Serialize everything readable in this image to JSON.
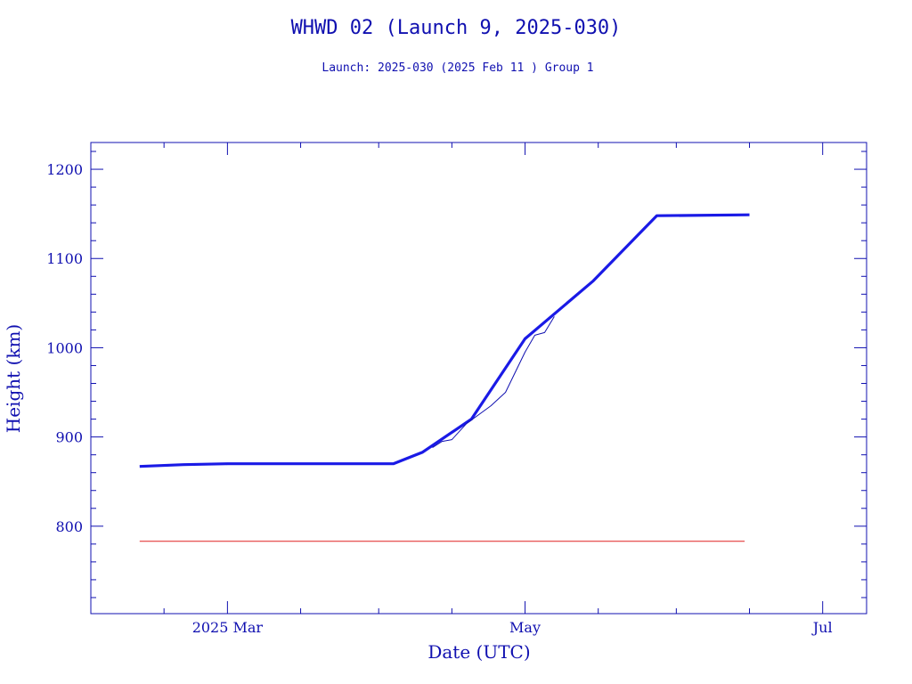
{
  "chart_data": {
    "type": "line",
    "title": "WHWD 02 (Launch 9, 2025-030)",
    "subtitle": "Launch: 2025-030  (2025 Feb 11 )  Group 1",
    "xlabel": "Date (UTC)",
    "ylabel": "Height (km)",
    "xlim": [
      "2025-02-01",
      "2025-07-10"
    ],
    "ylim": [
      702,
      1230
    ],
    "x_ticks": [
      {
        "date": "2025-03-01",
        "label": "2025 Mar"
      },
      {
        "date": "2025-05-01",
        "label": "May"
      },
      {
        "date": "2025-07-01",
        "label": "Jul"
      }
    ],
    "y_ticks": [
      800,
      900,
      1000,
      1100,
      1200
    ],
    "grid": false,
    "series": [
      {
        "color": "#1a1ae6",
        "values": [
          {
            "date": "2025-02-11",
            "height": 867
          },
          {
            "date": "2025-02-20",
            "height": 869
          },
          {
            "date": "2025-03-01",
            "height": 870
          },
          {
            "date": "2025-03-15",
            "height": 870
          },
          {
            "date": "2025-04-04",
            "height": 870
          },
          {
            "date": "2025-04-10",
            "height": 883
          },
          {
            "date": "2025-04-20",
            "height": 920
          },
          {
            "date": "2025-05-01",
            "height": 1010
          },
          {
            "date": "2025-05-15",
            "height": 1075
          },
          {
            "date": "2025-05-28",
            "height": 1148
          },
          {
            "date": "2025-06-16",
            "height": 1149
          }
        ]
      },
      {
        "color": "#1010b0",
        "values": [
          {
            "date": "2025-04-12",
            "height": 888
          },
          {
            "date": "2025-04-14",
            "height": 895
          },
          {
            "date": "2025-04-16",
            "height": 897
          },
          {
            "date": "2025-04-19",
            "height": 915
          },
          {
            "date": "2025-04-24",
            "height": 935
          },
          {
            "date": "2025-04-27",
            "height": 950
          },
          {
            "date": "2025-05-01",
            "height": 995
          },
          {
            "date": "2025-05-03",
            "height": 1014
          },
          {
            "date": "2025-05-05",
            "height": 1017
          },
          {
            "date": "2025-05-07",
            "height": 1035
          }
        ]
      },
      {
        "color": "#e02020",
        "values": [
          {
            "date": "2025-02-11",
            "height": 783
          },
          {
            "date": "2025-06-15",
            "height": 783
          }
        ]
      }
    ]
  }
}
